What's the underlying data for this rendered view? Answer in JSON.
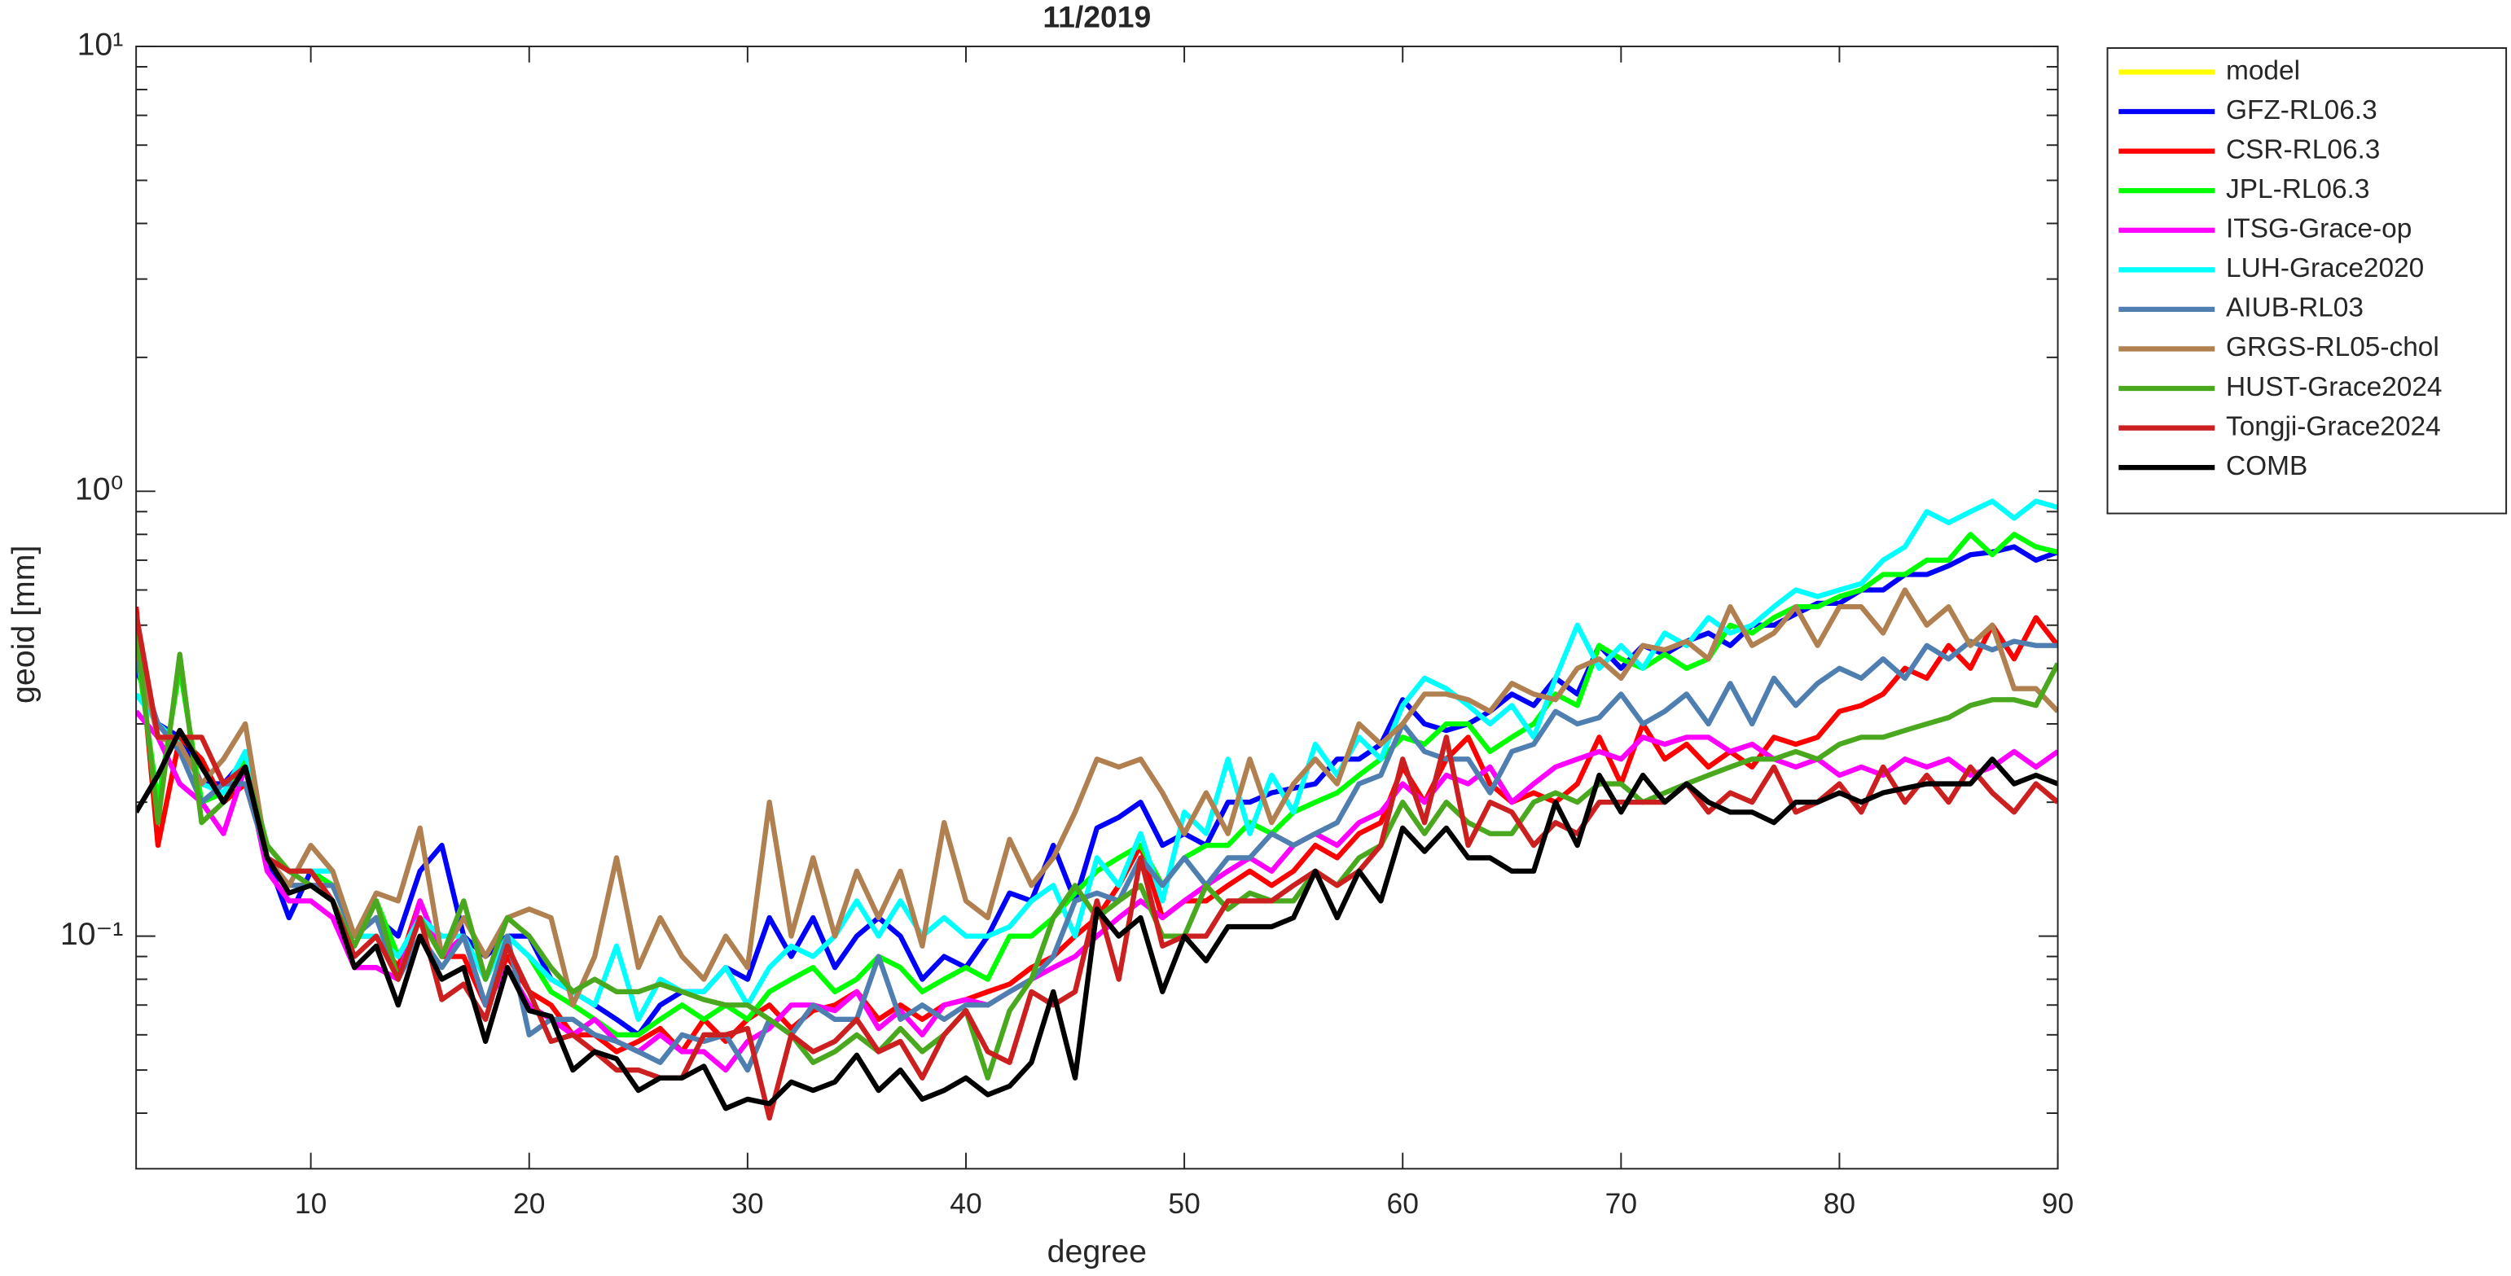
{
  "chart_data": {
    "type": "line",
    "title": "11/2019",
    "xlabel": "degree",
    "ylabel": "geoid [mm]",
    "log_y": true,
    "grid": false,
    "legend_position": "outside-upper-right",
    "xlim": [
      2,
      90
    ],
    "ylim": [
      0.03,
      10
    ],
    "xticks": [
      10,
      20,
      30,
      40,
      50,
      60,
      70,
      80,
      90
    ],
    "yticks": [
      {
        "value": 0.1,
        "label": "10⁻¹"
      },
      {
        "value": 1,
        "label": "10⁰"
      },
      {
        "value": 10,
        "label": "10¹"
      }
    ],
    "yminor_ticks": [
      0.04,
      0.05,
      0.06,
      0.07,
      0.08,
      0.09,
      0.2,
      0.3,
      0.4,
      0.5,
      0.6,
      0.7,
      0.8,
      0.9,
      2,
      3,
      4,
      5,
      6,
      7,
      8,
      9
    ],
    "x": [
      2,
      3,
      4,
      5,
      6,
      7,
      8,
      9,
      10,
      11,
      12,
      13,
      14,
      15,
      16,
      17,
      18,
      19,
      20,
      21,
      22,
      23,
      24,
      25,
      26,
      27,
      28,
      29,
      30,
      31,
      32,
      33,
      34,
      35,
      36,
      37,
      38,
      39,
      40,
      41,
      42,
      43,
      44,
      45,
      46,
      47,
      48,
      49,
      50,
      51,
      52,
      53,
      54,
      55,
      56,
      57,
      58,
      59,
      60,
      61,
      62,
      63,
      64,
      65,
      66,
      67,
      68,
      69,
      70,
      71,
      72,
      73,
      74,
      75,
      76,
      77,
      78,
      79,
      80,
      81,
      82,
      83,
      84,
      85,
      86,
      87,
      88,
      89,
      90
    ],
    "series": [
      {
        "name": "model",
        "color": "#ffff00",
        "values": [
          null,
          null,
          null,
          null,
          null,
          null,
          null,
          null,
          null,
          null,
          null,
          null,
          null,
          null,
          null,
          null,
          null,
          null,
          null,
          null,
          null,
          null,
          null,
          null,
          null,
          null,
          null,
          null,
          null,
          null,
          null,
          null,
          null,
          null,
          null,
          null,
          null,
          null,
          null,
          null,
          null,
          null,
          null,
          null,
          null,
          null,
          null,
          null,
          null,
          null,
          null,
          null,
          null,
          null,
          null,
          null,
          null,
          null,
          null,
          null,
          null,
          null,
          null,
          null,
          null,
          null,
          null,
          null,
          null,
          null,
          null,
          null,
          null,
          null,
          null,
          null,
          null,
          null,
          null,
          null,
          null,
          null,
          null,
          null,
          null,
          null,
          null,
          null,
          null
        ]
      },
      {
        "name": "GFZ-RL06.3",
        "color": "#0000ff",
        "values": [
          0.4,
          0.3,
          0.28,
          0.22,
          0.22,
          0.25,
          0.15,
          0.11,
          0.14,
          0.13,
          0.1,
          0.11,
          0.1,
          0.14,
          0.16,
          0.1,
          0.09,
          0.1,
          0.1,
          0.08,
          0.075,
          0.07,
          0.065,
          0.06,
          0.07,
          0.075,
          0.075,
          0.085,
          0.08,
          0.11,
          0.09,
          0.11,
          0.085,
          0.1,
          0.11,
          0.1,
          0.08,
          0.09,
          0.085,
          0.1,
          0.125,
          0.12,
          0.16,
          0.12,
          0.175,
          0.185,
          0.2,
          0.16,
          0.17,
          0.16,
          0.2,
          0.2,
          0.21,
          0.215,
          0.22,
          0.25,
          0.25,
          0.27,
          0.34,
          0.3,
          0.29,
          0.3,
          0.32,
          0.35,
          0.33,
          0.38,
          0.35,
          0.45,
          0.4,
          0.45,
          0.43,
          0.46,
          0.48,
          0.45,
          0.5,
          0.5,
          0.53,
          0.56,
          0.56,
          0.6,
          0.6,
          0.65,
          0.65,
          0.68,
          0.72,
          0.73,
          0.75,
          0.7,
          0.73
        ]
      },
      {
        "name": "CSR-RL06.3",
        "color": "#ff0000",
        "values": [
          0.55,
          0.16,
          0.28,
          0.25,
          0.2,
          0.22,
          0.15,
          0.13,
          0.13,
          0.13,
          0.1,
          0.1,
          0.085,
          0.12,
          0.09,
          0.09,
          0.07,
          0.09,
          0.075,
          0.07,
          0.06,
          0.06,
          0.055,
          0.058,
          0.062,
          0.055,
          0.065,
          0.058,
          0.065,
          0.07,
          0.062,
          0.068,
          0.07,
          0.075,
          0.065,
          0.07,
          0.065,
          0.07,
          0.072,
          0.075,
          0.078,
          0.085,
          0.09,
          0.1,
          0.11,
          0.13,
          0.16,
          0.11,
          0.12,
          0.12,
          0.13,
          0.14,
          0.13,
          0.14,
          0.16,
          0.15,
          0.17,
          0.18,
          0.24,
          0.2,
          0.25,
          0.28,
          0.22,
          0.2,
          0.21,
          0.2,
          0.22,
          0.28,
          0.22,
          0.3,
          0.25,
          0.27,
          0.24,
          0.26,
          0.24,
          0.28,
          0.27,
          0.28,
          0.32,
          0.33,
          0.35,
          0.4,
          0.38,
          0.45,
          0.4,
          0.5,
          0.42,
          0.52,
          0.45
        ]
      },
      {
        "name": "JPL-RL06.3",
        "color": "#00ff00",
        "values": [
          0.45,
          0.2,
          0.4,
          0.2,
          0.21,
          0.25,
          0.16,
          0.14,
          0.14,
          0.13,
          0.1,
          0.12,
          0.09,
          0.11,
          0.09,
          0.1,
          0.08,
          0.1,
          0.09,
          0.075,
          0.07,
          0.065,
          0.06,
          0.06,
          0.065,
          0.07,
          0.065,
          0.07,
          0.065,
          0.075,
          0.08,
          0.085,
          0.075,
          0.08,
          0.09,
          0.085,
          0.075,
          0.08,
          0.085,
          0.08,
          0.1,
          0.1,
          0.11,
          0.125,
          0.14,
          0.15,
          0.16,
          0.13,
          0.15,
          0.16,
          0.16,
          0.18,
          0.17,
          0.19,
          0.2,
          0.21,
          0.23,
          0.25,
          0.28,
          0.27,
          0.3,
          0.3,
          0.26,
          0.28,
          0.3,
          0.35,
          0.33,
          0.45,
          0.42,
          0.4,
          0.43,
          0.4,
          0.42,
          0.5,
          0.48,
          0.52,
          0.55,
          0.55,
          0.58,
          0.6,
          0.65,
          0.65,
          0.7,
          0.7,
          0.8,
          0.72,
          0.8,
          0.75,
          0.73
        ]
      },
      {
        "name": "ITSG-Grace-op",
        "color": "#ff00ff",
        "values": [
          0.32,
          0.28,
          0.22,
          0.2,
          0.17,
          0.24,
          0.14,
          0.12,
          0.12,
          0.11,
          0.085,
          0.085,
          0.08,
          0.12,
          0.09,
          0.1,
          0.07,
          0.085,
          0.07,
          0.065,
          0.06,
          0.065,
          0.058,
          0.055,
          0.06,
          0.055,
          0.055,
          0.05,
          0.058,
          0.062,
          0.07,
          0.07,
          0.068,
          0.075,
          0.062,
          0.068,
          0.06,
          0.07,
          0.072,
          0.07,
          0.075,
          0.08,
          0.085,
          0.09,
          0.1,
          0.11,
          0.12,
          0.11,
          0.12,
          0.13,
          0.14,
          0.15,
          0.14,
          0.16,
          0.17,
          0.16,
          0.18,
          0.19,
          0.22,
          0.2,
          0.23,
          0.22,
          0.24,
          0.2,
          0.22,
          0.24,
          0.25,
          0.26,
          0.25,
          0.28,
          0.27,
          0.28,
          0.28,
          0.26,
          0.27,
          0.25,
          0.24,
          0.25,
          0.23,
          0.24,
          0.23,
          0.25,
          0.24,
          0.25,
          0.23,
          0.24,
          0.26,
          0.24,
          0.26
        ]
      },
      {
        "name": "LUH-Grace2020",
        "color": "#00ffff",
        "values": [
          0.35,
          0.3,
          0.27,
          0.22,
          0.21,
          0.26,
          0.15,
          0.14,
          0.14,
          0.14,
          0.1,
          0.1,
          0.09,
          0.11,
          0.1,
          0.1,
          0.08,
          0.1,
          0.09,
          0.08,
          0.075,
          0.07,
          0.095,
          0.065,
          0.08,
          0.075,
          0.075,
          0.085,
          0.07,
          0.085,
          0.095,
          0.09,
          0.1,
          0.12,
          0.1,
          0.12,
          0.1,
          0.11,
          0.1,
          0.1,
          0.105,
          0.12,
          0.13,
          0.1,
          0.15,
          0.13,
          0.17,
          0.12,
          0.19,
          0.17,
          0.25,
          0.17,
          0.23,
          0.19,
          0.27,
          0.23,
          0.28,
          0.25,
          0.33,
          0.38,
          0.36,
          0.33,
          0.3,
          0.33,
          0.28,
          0.38,
          0.5,
          0.4,
          0.45,
          0.4,
          0.48,
          0.45,
          0.52,
          0.48,
          0.5,
          0.55,
          0.6,
          0.58,
          0.6,
          0.62,
          0.7,
          0.75,
          0.9,
          0.85,
          0.9,
          0.95,
          0.87,
          0.95,
          0.92
        ]
      },
      {
        "name": "AIUB-RL03",
        "color": "#4f7fb0",
        "values": [
          0.42,
          0.3,
          0.26,
          0.2,
          0.22,
          0.22,
          0.15,
          0.13,
          0.13,
          0.13,
          0.1,
          0.11,
          0.08,
          0.1,
          0.085,
          0.1,
          0.07,
          0.1,
          0.06,
          0.065,
          0.065,
          0.06,
          0.058,
          0.055,
          0.052,
          0.06,
          0.058,
          0.06,
          0.05,
          0.065,
          0.06,
          0.07,
          0.065,
          0.065,
          0.09,
          0.065,
          0.07,
          0.065,
          0.07,
          0.07,
          0.075,
          0.08,
          0.09,
          0.12,
          0.125,
          0.12,
          0.15,
          0.13,
          0.15,
          0.13,
          0.15,
          0.15,
          0.17,
          0.16,
          0.17,
          0.18,
          0.22,
          0.23,
          0.3,
          0.26,
          0.25,
          0.25,
          0.21,
          0.26,
          0.27,
          0.32,
          0.3,
          0.31,
          0.35,
          0.3,
          0.32,
          0.35,
          0.3,
          0.37,
          0.3,
          0.38,
          0.33,
          0.37,
          0.4,
          0.38,
          0.42,
          0.38,
          0.45,
          0.42,
          0.46,
          0.44,
          0.46,
          0.45,
          0.45
        ]
      },
      {
        "name": "GRGS-RL05-chol",
        "color": "#b08050",
        "values": [
          0.45,
          0.28,
          0.27,
          0.22,
          0.25,
          0.3,
          0.15,
          0.13,
          0.16,
          0.14,
          0.1,
          0.125,
          0.12,
          0.175,
          0.09,
          0.11,
          0.09,
          0.11,
          0.115,
          0.11,
          0.07,
          0.09,
          0.15,
          0.085,
          0.11,
          0.09,
          0.08,
          0.1,
          0.085,
          0.2,
          0.1,
          0.15,
          0.1,
          0.14,
          0.11,
          0.14,
          0.095,
          0.18,
          0.12,
          0.11,
          0.165,
          0.13,
          0.15,
          0.19,
          0.25,
          0.24,
          0.25,
          0.21,
          0.17,
          0.21,
          0.17,
          0.25,
          0.18,
          0.22,
          0.25,
          0.22,
          0.3,
          0.27,
          0.3,
          0.35,
          0.35,
          0.34,
          0.32,
          0.37,
          0.35,
          0.34,
          0.4,
          0.42,
          0.38,
          0.45,
          0.44,
          0.46,
          0.42,
          0.55,
          0.45,
          0.48,
          0.55,
          0.45,
          0.55,
          0.55,
          0.48,
          0.6,
          0.5,
          0.55,
          0.45,
          0.5,
          0.36,
          0.36,
          0.32
        ]
      },
      {
        "name": "HUST-Grace2024",
        "color": "#4aa81e",
        "values": [
          0.5,
          0.18,
          0.43,
          0.18,
          0.2,
          0.24,
          0.16,
          0.14,
          0.13,
          0.12,
          0.095,
          0.12,
          0.08,
          0.11,
          0.09,
          0.12,
          0.08,
          0.11,
          0.1,
          0.085,
          0.075,
          0.08,
          0.075,
          0.075,
          0.078,
          0.075,
          0.072,
          0.07,
          0.07,
          0.065,
          0.06,
          0.052,
          0.055,
          0.06,
          0.055,
          0.062,
          0.055,
          0.06,
          0.068,
          0.048,
          0.068,
          0.08,
          0.11,
          0.13,
          0.11,
          0.12,
          0.13,
          0.1,
          0.1,
          0.13,
          0.115,
          0.125,
          0.12,
          0.12,
          0.14,
          0.13,
          0.15,
          0.16,
          0.2,
          0.17,
          0.2,
          0.18,
          0.17,
          0.17,
          0.2,
          0.21,
          0.2,
          0.22,
          0.22,
          0.2,
          0.21,
          0.22,
          0.23,
          0.24,
          0.25,
          0.25,
          0.26,
          0.25,
          0.27,
          0.28,
          0.28,
          0.29,
          0.3,
          0.31,
          0.33,
          0.34,
          0.34,
          0.33,
          0.41
        ]
      },
      {
        "name": "Tongji-Grace2024",
        "color": "#cc1f1f",
        "values": [
          0.53,
          0.28,
          0.28,
          0.28,
          0.22,
          0.24,
          0.15,
          0.14,
          0.14,
          0.12,
          0.09,
          0.1,
          0.08,
          0.11,
          0.072,
          0.078,
          0.065,
          0.095,
          0.075,
          0.058,
          0.06,
          0.055,
          0.05,
          0.05,
          0.048,
          0.048,
          0.06,
          0.06,
          0.062,
          0.039,
          0.06,
          0.055,
          0.058,
          0.065,
          0.055,
          0.058,
          0.048,
          0.06,
          0.068,
          0.055,
          0.052,
          0.075,
          0.07,
          0.075,
          0.12,
          0.08,
          0.15,
          0.095,
          0.1,
          0.1,
          0.12,
          0.12,
          0.12,
          0.13,
          0.14,
          0.13,
          0.14,
          0.16,
          0.25,
          0.18,
          0.28,
          0.16,
          0.2,
          0.19,
          0.16,
          0.18,
          0.17,
          0.2,
          0.2,
          0.2,
          0.2,
          0.22,
          0.19,
          0.21,
          0.2,
          0.24,
          0.19,
          0.2,
          0.22,
          0.19,
          0.24,
          0.2,
          0.23,
          0.2,
          0.24,
          0.21,
          0.19,
          0.22,
          0.2
        ]
      },
      {
        "name": "COMB",
        "color": "#000000",
        "values": [
          0.19,
          0.23,
          0.29,
          0.24,
          0.2,
          0.24,
          0.15,
          0.125,
          0.13,
          0.12,
          0.085,
          0.095,
          0.07,
          0.1,
          0.08,
          0.085,
          0.058,
          0.085,
          0.068,
          0.066,
          0.05,
          0.055,
          0.053,
          0.045,
          0.048,
          0.048,
          0.051,
          0.041,
          0.043,
          0.042,
          0.047,
          0.045,
          0.047,
          0.054,
          0.045,
          0.05,
          0.043,
          0.045,
          0.048,
          0.044,
          0.046,
          0.052,
          0.075,
          0.048,
          0.115,
          0.1,
          0.11,
          0.075,
          0.1,
          0.088,
          0.105,
          0.105,
          0.105,
          0.11,
          0.14,
          0.11,
          0.14,
          0.12,
          0.175,
          0.155,
          0.175,
          0.15,
          0.15,
          0.14,
          0.14,
          0.2,
          0.16,
          0.23,
          0.19,
          0.23,
          0.2,
          0.22,
          0.2,
          0.19,
          0.19,
          0.18,
          0.2,
          0.2,
          0.21,
          0.2,
          0.21,
          0.215,
          0.22,
          0.22,
          0.22,
          0.25,
          0.22,
          0.23,
          0.22
        ]
      }
    ]
  }
}
